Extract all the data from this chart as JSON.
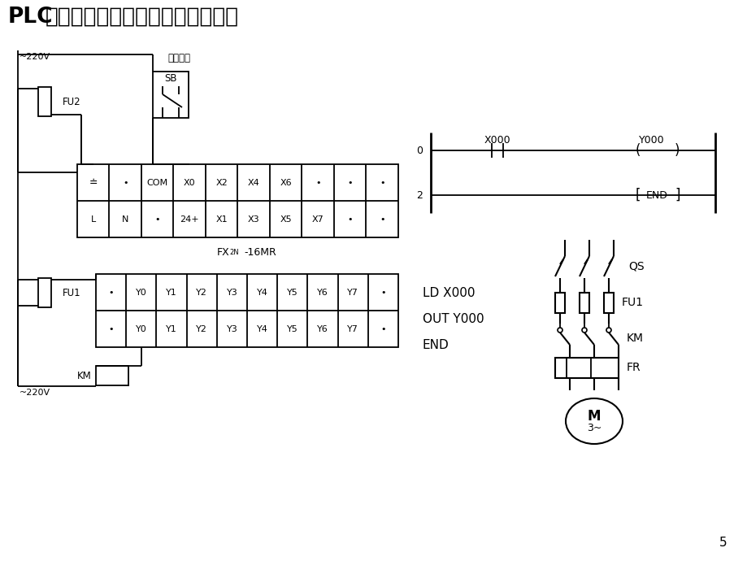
{
  "bg": "#ffffff",
  "fg": "#000000",
  "title_bold": "PLC",
  "title_rest": "控制的电动机点动控制线路和程序",
  "page_num": "5",
  "plc_model_1": "FX",
  "plc_model_sub": "2N",
  "plc_model_2": "-16MR",
  "input_top": [
    "⋙",
    "•",
    "COM",
    "X0",
    "X2",
    "X4",
    "X6",
    "•",
    "•",
    "•"
  ],
  "input_bot": [
    "L",
    "N",
    "•",
    "24+",
    "X1",
    "X3",
    "X5",
    "X7",
    "•",
    "•"
  ],
  "output_top": [
    "•",
    "Y0",
    "Y1",
    "Y2",
    "Y3",
    "Y4",
    "Y5",
    "Y6",
    "Y7",
    "•"
  ],
  "output_bot": [
    "•",
    "Y0",
    "Y1",
    "Y2",
    "Y3",
    "Y4",
    "Y5",
    "Y6",
    "Y7",
    "•"
  ],
  "prog_lines": [
    "LD X000",
    "OUT Y000",
    "END"
  ],
  "voltage": "~220V",
  "dotdong_label": "点动按钮",
  "SB": "SB",
  "FU2": "FU2",
  "FU1_left": "FU1",
  "FU1_right": "FU1",
  "KM": "KM",
  "QS": "QS",
  "FR": "FR",
  "M_label": "M",
  "three_phase": "3~",
  "rung0_num": "0",
  "rung2_num": "2",
  "X000": "X000",
  "Y000": "Y000",
  "END": "END"
}
